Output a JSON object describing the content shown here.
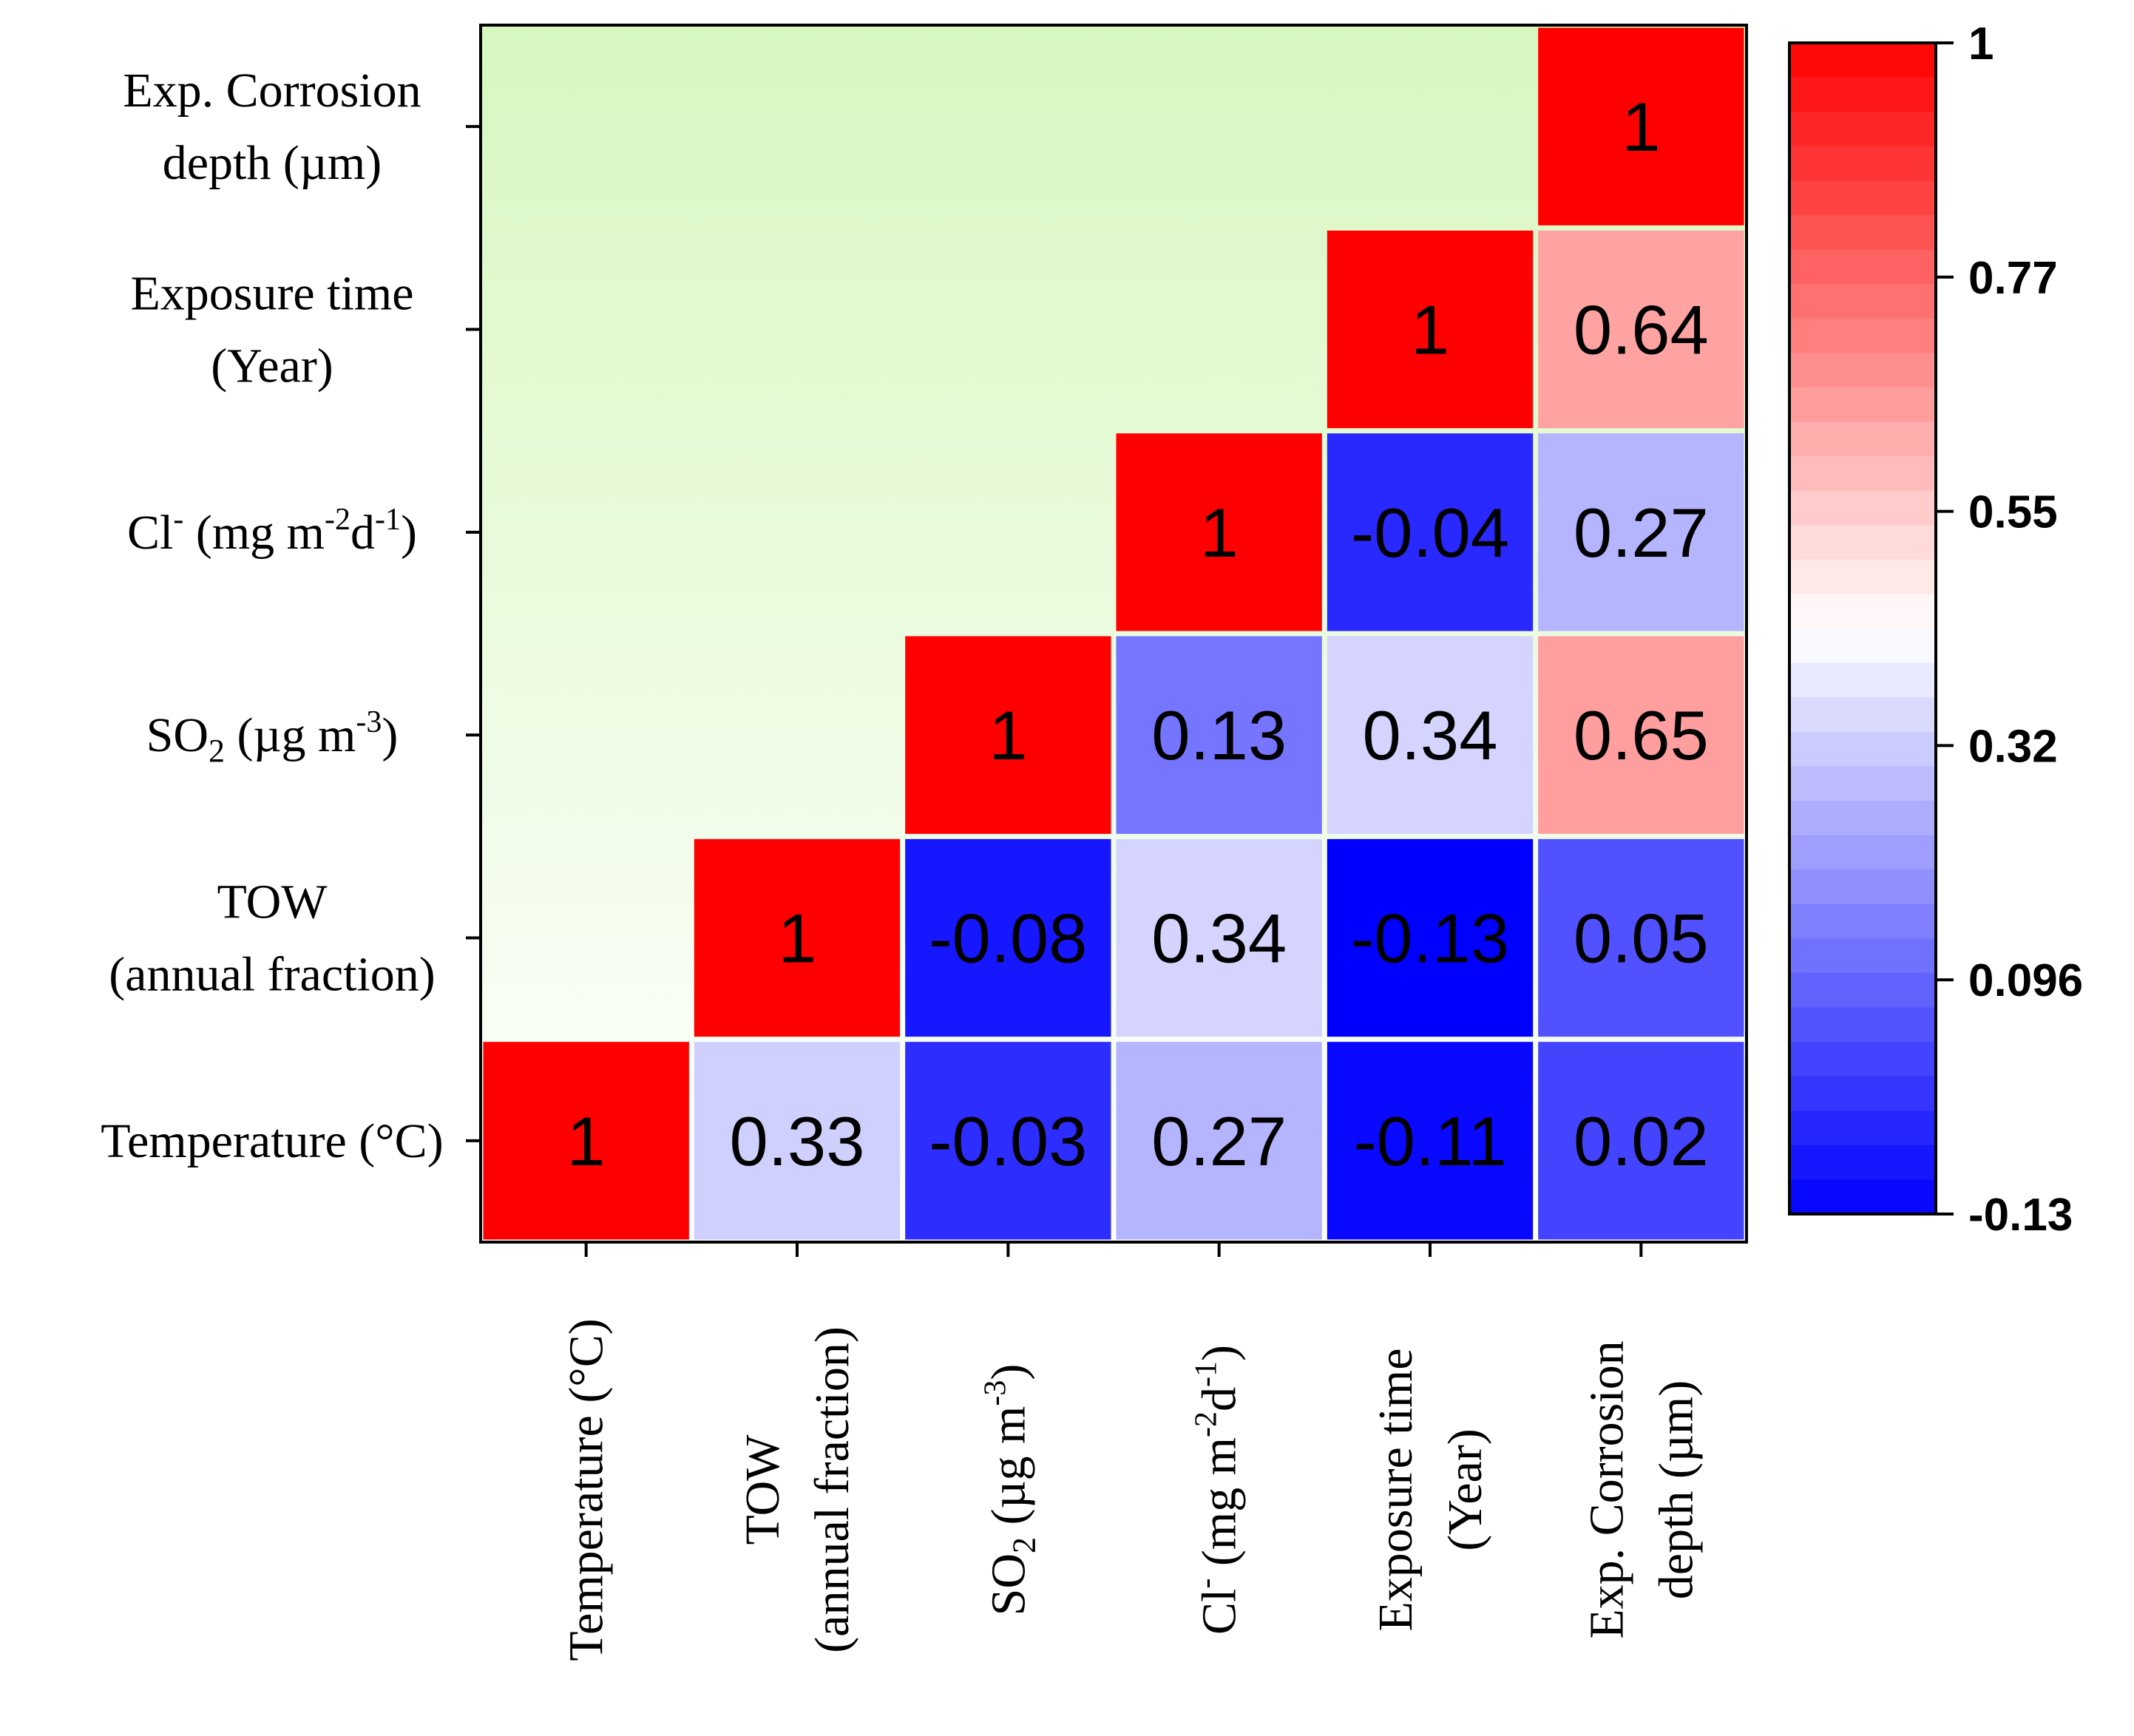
{
  "chart_data": {
    "type": "heatmap",
    "title": "",
    "variables": [
      {
        "label": "Temperature (°C)",
        "lines": [
          [
            {
              "t": "Temperature (°C)"
            }
          ]
        ]
      },
      {
        "label": "TOW (annual fraction)",
        "lines": [
          [
            {
              "t": "TOW"
            }
          ],
          [
            {
              "t": "(annual fraction)"
            }
          ]
        ]
      },
      {
        "label": "SO2 (µg m-3)",
        "lines": [
          [
            {
              "t": "SO"
            },
            {
              "t": "2",
              "sub": true
            },
            {
              "t": " (µg m"
            },
            {
              "t": "-3",
              "sup": true
            },
            {
              "t": ")"
            }
          ]
        ]
      },
      {
        "label": "Cl- (mg m-2d-1)",
        "lines": [
          [
            {
              "t": "Cl"
            },
            {
              "t": "-",
              "sup": true
            },
            {
              "t": " (mg m"
            },
            {
              "t": "-2",
              "sup": true
            },
            {
              "t": "d"
            },
            {
              "t": "-1",
              "sup": true
            },
            {
              "t": ")"
            }
          ]
        ]
      },
      {
        "label": "Exposure time (Year)",
        "lines": [
          [
            {
              "t": "Exposure time"
            }
          ],
          [
            {
              "t": "(Year)"
            }
          ]
        ]
      },
      {
        "label": "Exp. Corrosion depth (µm)",
        "lines": [
          [
            {
              "t": "Exp. Corrosion"
            }
          ],
          [
            {
              "t": "depth (µm)"
            }
          ]
        ]
      }
    ],
    "matrix": [
      [
        1,
        0.33,
        -0.03,
        0.27,
        -0.11,
        0.02
      ],
      [
        0.33,
        1,
        -0.08,
        0.34,
        -0.13,
        0.05
      ],
      [
        -0.03,
        -0.08,
        1,
        0.13,
        0.34,
        0.65
      ],
      [
        0.27,
        0.34,
        0.13,
        1,
        -0.04,
        0.27
      ],
      [
        -0.11,
        -0.13,
        0.34,
        -0.04,
        1,
        0.64
      ],
      [
        0.02,
        0.05,
        0.65,
        0.27,
        0.64,
        1
      ]
    ],
    "colorbar": {
      "min": -0.13,
      "max": 1,
      "mid": 0.435,
      "ticks": [
        "1",
        "0.77",
        "0.55",
        "0.32",
        "0.096",
        "-0.13"
      ],
      "colors": {
        "low": "#0000ff",
        "mid": "#ffffff",
        "high": "#ff0000"
      }
    },
    "background_gradient": {
      "top": "#d7f7c0",
      "bottom": "#ffffff"
    }
  }
}
